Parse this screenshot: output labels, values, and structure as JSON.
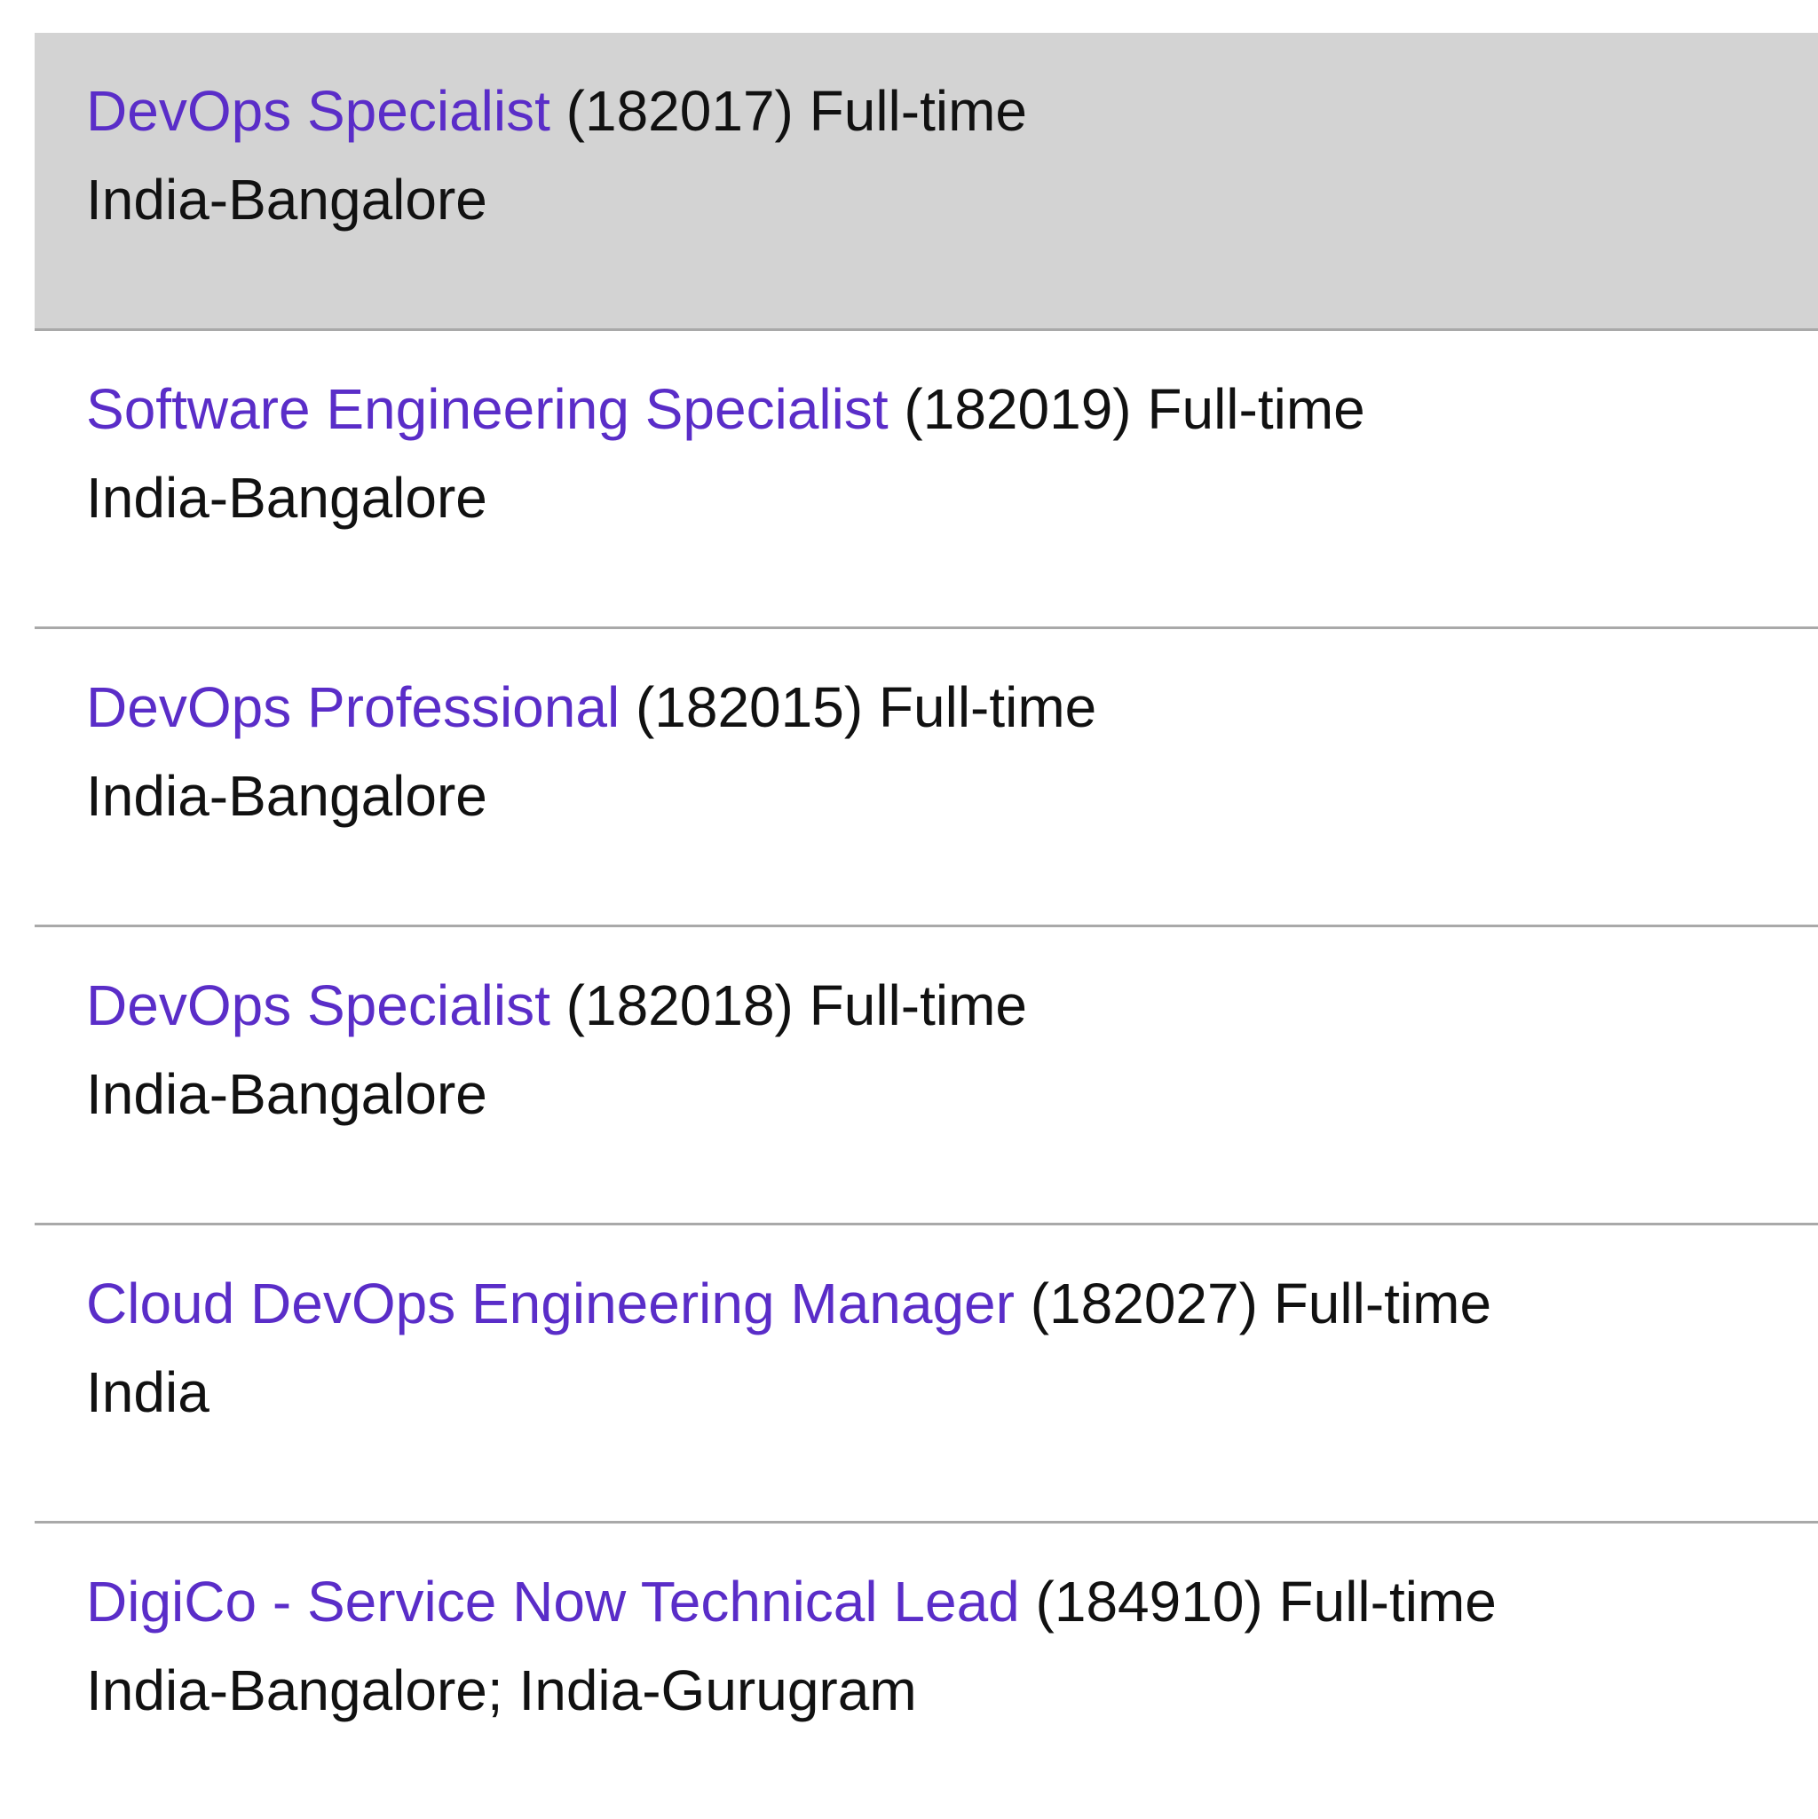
{
  "jobs": [
    {
      "title": "DevOps Specialist",
      "id": "(182017)",
      "type": "Full-time",
      "location": "India-Bangalore",
      "selected": true
    },
    {
      "title": "Software Engineering Specialist",
      "id": "(182019)",
      "type": "Full-time",
      "location": "India-Bangalore"
    },
    {
      "title": "DevOps Professional",
      "id": "(182015)",
      "type": "Full-time",
      "location": "India-Bangalore"
    },
    {
      "title": "DevOps Specialist",
      "id": "(182018)",
      "type": "Full-time",
      "location": "India-Bangalore"
    },
    {
      "title": "Cloud DevOps Engineering Manager",
      "id": "(182027)",
      "type": "Full-time",
      "location": "India"
    },
    {
      "title": "DigiCo - Service Now Technical Lead",
      "id": "(184910)",
      "type": "Full-time",
      "location": "India-Bangalore; India-Gurugram"
    }
  ],
  "colors": {
    "link": "#5a2dc8",
    "selected_bg": "#d3d3d3",
    "divider": "#a9a9a9"
  }
}
